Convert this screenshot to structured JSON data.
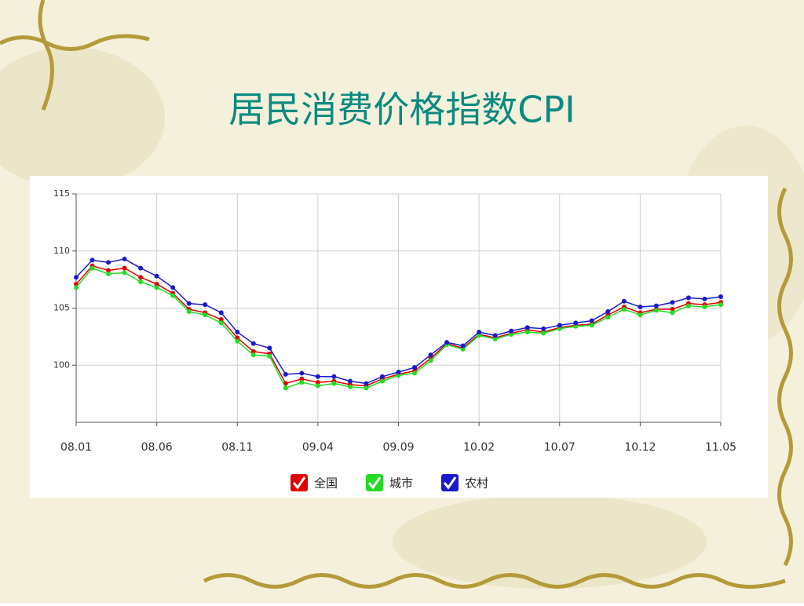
{
  "chart_data": {
    "type": "line",
    "title": "居民消费价格指数CPI",
    "categories": [
      "08.01",
      null,
      null,
      null,
      null,
      "08.06",
      null,
      null,
      null,
      null,
      "08.11",
      null,
      null,
      null,
      null,
      "09.04",
      null,
      null,
      null,
      null,
      "09.09",
      null,
      null,
      null,
      null,
      "10.02",
      null,
      null,
      null,
      null,
      "10.07",
      null,
      null,
      null,
      null,
      "10.12",
      null,
      null,
      null,
      null,
      "11.05"
    ],
    "series": [
      {
        "name": "全国",
        "color": "#e00000",
        "values": [
          107.1,
          108.7,
          108.3,
          108.5,
          107.7,
          107.1,
          106.3,
          104.9,
          104.6,
          104.0,
          102.4,
          101.2,
          101.0,
          98.4,
          98.8,
          98.5,
          98.6,
          98.3,
          98.2,
          98.8,
          99.2,
          99.5,
          100.6,
          101.9,
          101.5,
          102.7,
          102.4,
          102.8,
          103.1,
          102.9,
          103.3,
          103.5,
          103.6,
          104.4,
          105.1,
          104.6,
          104.9,
          104.9,
          105.4,
          105.3,
          105.5
        ]
      },
      {
        "name": "城市",
        "color": "#22dd22",
        "values": [
          106.8,
          108.5,
          108.0,
          108.1,
          107.3,
          106.8,
          106.1,
          104.7,
          104.4,
          103.7,
          102.1,
          100.9,
          100.8,
          98.0,
          98.5,
          98.2,
          98.4,
          98.1,
          98.0,
          98.6,
          99.1,
          99.3,
          100.4,
          101.8,
          101.4,
          102.6,
          102.3,
          102.7,
          102.9,
          102.8,
          103.2,
          103.4,
          103.5,
          104.2,
          104.9,
          104.4,
          104.8,
          104.6,
          105.2,
          105.1,
          105.3
        ]
      },
      {
        "name": "农村",
        "color": "#1a1acc",
        "values": [
          107.7,
          109.2,
          109.0,
          109.3,
          108.5,
          107.8,
          106.8,
          105.4,
          105.3,
          104.6,
          102.9,
          101.9,
          101.5,
          99.2,
          99.3,
          99.0,
          99.0,
          98.6,
          98.4,
          99.0,
          99.4,
          99.8,
          100.9,
          102.0,
          101.7,
          102.9,
          102.6,
          103.0,
          103.3,
          103.2,
          103.5,
          103.7,
          103.9,
          104.7,
          105.6,
          105.1,
          105.2,
          105.5,
          105.9,
          105.8,
          106.0
        ]
      }
    ],
    "ylim": [
      95,
      115
    ],
    "yticks": [
      100,
      105,
      110,
      115
    ],
    "grid": true
  }
}
